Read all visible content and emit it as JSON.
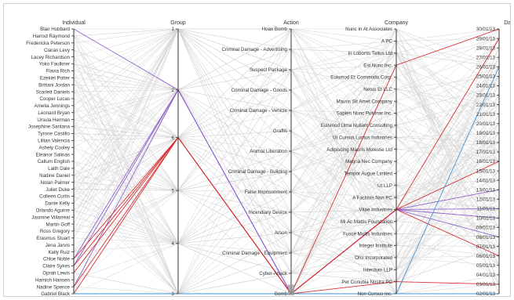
{
  "chart_data": {
    "type": "parallel_coordinates",
    "dimensions": [
      {
        "key": "individual",
        "label": "Individual",
        "kind": "category",
        "ticks": [
          "Blair Hubbard",
          "Harrod Raymond",
          "Fredericka Peterson",
          "Ciaran Levy",
          "Lacey Richardson",
          "Yoko Faulkner",
          "Flavia Rich",
          "Ezekiel Potter",
          "Brittani Jordan",
          "Scarlett Daniels",
          "Cooper Lucas",
          "Amelia Jennings",
          "Leonard Bryan",
          "Ursula Herman",
          "Josephine Santana",
          "Tyrone Castillo",
          "Lillian Valencia",
          "Ashely Cooley",
          "Eleanor Salinas",
          "Callum English",
          "Laith Dale",
          "Nadine Daniel",
          "Nolan Palmer",
          "Juliet Duke",
          "Colleen Curtis",
          "Dante Kelly",
          "Orlando Aguirre",
          "Jasmine Villarreal",
          "Martin Goff",
          "Ross Gregory",
          "Erasmus Stuart",
          "Jena Jarvis",
          "Kelly Ruiz",
          "Chloe Noble",
          "Claire Sykes",
          "Oprah Lewis",
          "Hamish Hansen",
          "Nadine Spence",
          "Gabriel Black"
        ]
      },
      {
        "key": "group",
        "label": "Group",
        "kind": "numeric",
        "ticks": [
          "1",
          "2",
          "6",
          "5",
          "4",
          "3"
        ]
      },
      {
        "key": "action",
        "label": "Action",
        "kind": "category",
        "ticks": [
          "Hoax Bomb",
          "Criminal Damage - Advertising",
          "Suspect Package",
          "Criminal Damage - Goods",
          "Criminal Damage - Vehicle",
          "Graffiti",
          "Animal Liberation",
          "Criminal Damage - Building",
          "False Imprisonment",
          "Incendiary Device",
          "Arson",
          "Criminal Damage - Equipment",
          "Cyber-Attack",
          "Bomb"
        ]
      },
      {
        "key": "company",
        "label": "Company",
        "kind": "category",
        "ticks": [
          "Nunc In At Associates",
          "A PC",
          "In Lobortis Tellus Ltd",
          "Est Nunc Inc.",
          "Euismod Et Commodo Corp.",
          "Netus Et LLC",
          "Mauris Sit Amet Company",
          "Sapien Nunc Pulvinar Inc.",
          "Euismod Urna Nullam Consulting",
          "Ut Cursus Luctus Industries",
          "Adipiscing Mauris Molestie Ltd",
          "Magna Nec Company",
          "Tempor Augue Limited",
          "Ut LLP",
          "A Facilisis Non PC",
          "Vitae Industries",
          "Mi Ac Mattis Foundation",
          "Fusce Mollis Industries",
          "Integer Institute",
          "Orci Incorporated",
          "Interdum LLP",
          "Per Conubia Nostra PC",
          "Non Cursus Inc."
        ]
      },
      {
        "key": "date",
        "label": "Date",
        "kind": "category",
        "ticks": [
          "30/01/13",
          "29/01/13",
          "28/01/13",
          "27/01/13",
          "26/01/13",
          "25/01/13",
          "24/01/13",
          "23/01/13",
          "22/01/13",
          "21/01/13",
          "20/01/13",
          "19/01/13",
          "18/01/13",
          "17/01/13",
          "16/01/13",
          "15/01/13",
          "14/01/13",
          "13/01/13",
          "12/01/13",
          "11/01/13",
          "10/01/13",
          "09/01/13",
          "08/01/13",
          "07/01/13",
          "06/01/13",
          "05/01/13",
          "04/01/13",
          "03/01/13",
          "02/01/13"
        ]
      }
    ],
    "highlighted_series": [
      {
        "color": "#8b5cc9",
        "records": [
          [
            "Blair Hubbard",
            "2",
            "Bomb",
            "Vitae Industries",
            "13/01/13"
          ],
          [
            "Chloe Noble",
            "2",
            "Bomb",
            "Vitae Industries",
            "10/01/13"
          ],
          [
            "Claire Sykes",
            "2",
            "Bomb",
            "Vitae Industries",
            "08/01/13"
          ],
          [
            "Nadine Spence",
            "2",
            "Bomb",
            "Vitae Industries",
            "11/01/13"
          ]
        ]
      },
      {
        "color": "#d7262b",
        "records": [
          [
            "Chloe Noble",
            "6",
            "Bomb",
            "Vitae Industries",
            "29/01/13"
          ],
          [
            "Claire Sykes",
            "6",
            "Bomb",
            "Est Nunc Inc.",
            "30/01/13"
          ],
          [
            "Oprah Lewis",
            "6",
            "Bomb",
            "Vitae Industries",
            "06/01/13"
          ],
          [
            "Nadine Spence",
            "6",
            "Bomb",
            "Per Conubia Nostra PC",
            "03/01/13"
          ],
          [
            "Gabriel Black",
            "6",
            "Bomb",
            "Vitae Industries",
            "16/01/13"
          ]
        ]
      },
      {
        "color": "#3a8fd4",
        "records": [
          [
            "Gabriel Black",
            "3",
            "Bomb",
            "Non Cursus Inc.",
            "02/01/13"
          ],
          [
            "Gabriel Black",
            "3",
            "Bomb",
            "Non Cursus Inc.",
            "26/01/13"
          ]
        ]
      }
    ],
    "background_color": "#d4d4d4",
    "brush": {
      "axis": "action",
      "range": [
        "Cyber-Attack",
        "Bomb"
      ]
    }
  }
}
